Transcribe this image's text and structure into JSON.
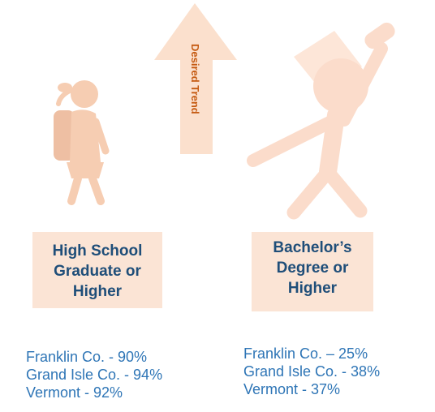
{
  "arrow_label": "Desired Trend",
  "panels": [
    {
      "title_lines": [
        "High School",
        "Graduate or",
        "Higher"
      ],
      "stats": [
        "Franklin Co. - 90%",
        "Grand Isle Co. - 94%",
        "Vermont - 92%"
      ]
    },
    {
      "title_lines": [
        "Bachelor’s",
        "Degree or",
        "Higher"
      ],
      "stats": [
        "Franklin Co. – 25%",
        "Grand Isle Co. - 38%",
        "Vermont - 37%"
      ]
    }
  ]
}
